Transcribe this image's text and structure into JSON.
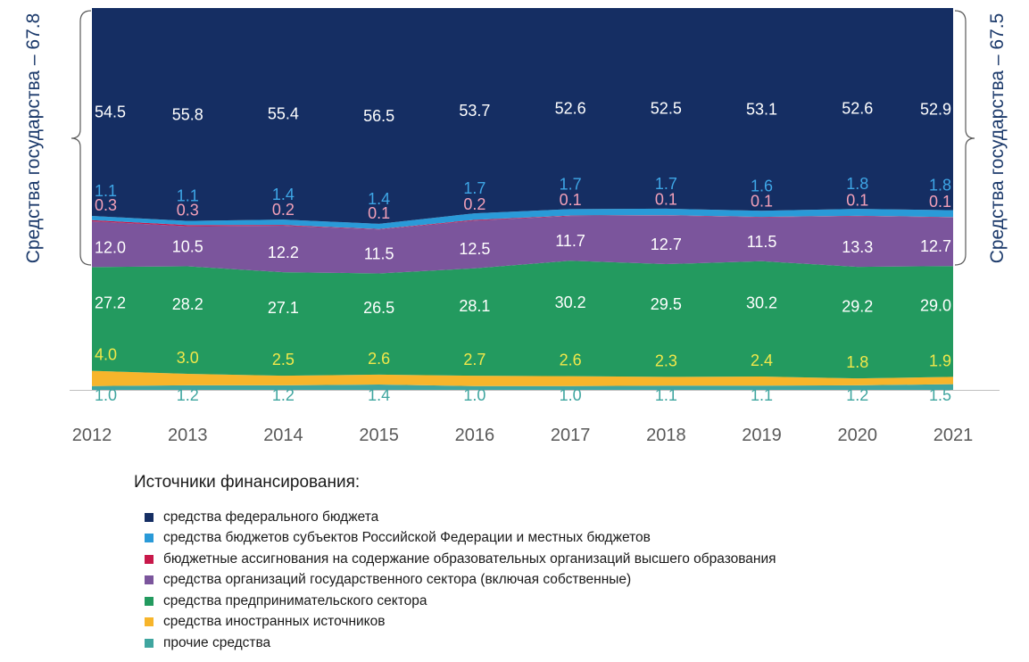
{
  "chart_data": {
    "type": "area",
    "stacked": true,
    "normalized_to": 100,
    "unit": "%",
    "categories": [
      "2012",
      "2013",
      "2014",
      "2015",
      "2016",
      "2017",
      "2018",
      "2019",
      "2020",
      "2021"
    ],
    "series": [
      {
        "name": "прочие средства",
        "color": "#3fa59f",
        "label_color": "#3fa59f",
        "values": [
          1.0,
          1.2,
          1.2,
          1.4,
          1.0,
          1.0,
          1.1,
          1.1,
          1.2,
          1.5
        ]
      },
      {
        "name": "средства иностранных источников",
        "color": "#f7b52b",
        "label_color": "#f2e84a",
        "values": [
          4.0,
          3.0,
          2.5,
          2.6,
          2.7,
          2.6,
          2.3,
          2.4,
          1.8,
          1.9
        ]
      },
      {
        "name": "средства предпринимательского сектора",
        "color": "#239a5f",
        "label_color": "#ffffff",
        "values": [
          27.2,
          28.2,
          27.1,
          26.5,
          28.1,
          30.2,
          29.5,
          30.2,
          29.2,
          29.0
        ]
      },
      {
        "name": "средства организаций государственного сектора (включая собственные)",
        "color": "#7b559c",
        "label_color": "#ffffff",
        "values": [
          12.0,
          10.5,
          12.2,
          11.5,
          12.5,
          11.7,
          12.7,
          11.5,
          13.3,
          12.7
        ]
      },
      {
        "name": "бюджетные ассигнования на содержание образовательных организаций высшего образования",
        "color": "#c8184a",
        "label_color": "#f2a0b8",
        "values": [
          0.3,
          0.3,
          0.2,
          0.1,
          0.2,
          0.1,
          0.1,
          0.1,
          0.1,
          0.1
        ]
      },
      {
        "name": "средства бюджетов субъектов Российской Федерации и местных бюджетов",
        "color": "#2a9ad8",
        "label_color": "#3ea6e6",
        "values": [
          1.1,
          1.1,
          1.4,
          1.4,
          1.7,
          1.7,
          1.7,
          1.6,
          1.8,
          1.8
        ]
      },
      {
        "name": "средства федерального бюджета",
        "color": "#152e63",
        "label_color": "#ffffff",
        "values": [
          54.5,
          55.8,
          55.4,
          56.5,
          53.7,
          52.6,
          52.5,
          53.1,
          52.6,
          52.9
        ]
      }
    ],
    "ylim": [
      0,
      100
    ],
    "bracket_left": "Средства государства – 67.8",
    "bracket_right": "Средства государства – 67.5"
  },
  "legend": {
    "title": "Источники финансирования:",
    "items": [
      {
        "label": "средства федерального бюджета",
        "color": "#152e63"
      },
      {
        "label": "средства бюджетов субъектов Российской Федерации и местных бюджетов",
        "color": "#2a9ad8"
      },
      {
        "label": "бюджетные ассигнования на содержание образовательных организаций высшего образования",
        "color": "#c8184a"
      },
      {
        "label": "средства организаций государственного сектора (включая собственные)",
        "color": "#7b559c"
      },
      {
        "label": "средства предпринимательского сектора",
        "color": "#239a5f"
      },
      {
        "label": "средства иностранных источников",
        "color": "#f7b52b"
      },
      {
        "label": "прочие средства",
        "color": "#3fa59f"
      }
    ]
  }
}
